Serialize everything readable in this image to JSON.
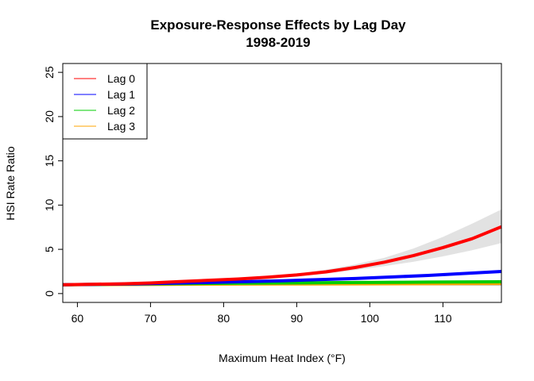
{
  "chart_data": {
    "type": "line",
    "title": "Exposure-Response Effects by Lag Day",
    "subtitle": "1998-2019",
    "xlabel": "Maximum Heat Index (°F)",
    "ylabel": "HSI Rate Ratio",
    "xlim": [
      58,
      118
    ],
    "ylim": [
      -1,
      26
    ],
    "x_ticks": [
      60,
      70,
      80,
      90,
      100,
      110
    ],
    "y_ticks": [
      0,
      5,
      10,
      15,
      20,
      25
    ],
    "legend_position": "top-left",
    "reference_line": 1,
    "series": [
      {
        "name": "Lag 0",
        "color": "#FF0000",
        "x": [
          58,
          62,
          66,
          70,
          74,
          78,
          82,
          86,
          90,
          94,
          98,
          102,
          106,
          110,
          114,
          118
        ],
        "y": [
          1.0,
          1.05,
          1.1,
          1.2,
          1.35,
          1.5,
          1.65,
          1.85,
          2.1,
          2.45,
          2.95,
          3.55,
          4.3,
          5.2,
          6.2,
          7.55
        ],
        "ci_lower": [
          1.0,
          1.04,
          1.08,
          1.17,
          1.3,
          1.44,
          1.57,
          1.75,
          1.95,
          2.25,
          2.65,
          3.1,
          3.6,
          4.2,
          4.9,
          5.7
        ],
        "ci_upper": [
          1.0,
          1.06,
          1.12,
          1.23,
          1.4,
          1.56,
          1.73,
          1.95,
          2.25,
          2.7,
          3.3,
          4.05,
          5.1,
          6.4,
          7.9,
          9.5
        ]
      },
      {
        "name": "Lag 1",
        "color": "#0000FF",
        "x": [
          58,
          68,
          78,
          88,
          98,
          108,
          118
        ],
        "y": [
          1.0,
          1.1,
          1.25,
          1.45,
          1.7,
          2.05,
          2.5
        ]
      },
      {
        "name": "Lag 2",
        "color": "#00CC00",
        "x": [
          58,
          68,
          78,
          88,
          98,
          108,
          118
        ],
        "y": [
          1.0,
          1.08,
          1.15,
          1.2,
          1.25,
          1.3,
          1.33
        ]
      },
      {
        "name": "Lag 3",
        "color": "#FFA500",
        "x": [
          58,
          68,
          78,
          88,
          98,
          108,
          118
        ],
        "y": [
          1.0,
          1.03,
          1.06,
          1.08,
          1.1,
          1.12,
          1.14
        ]
      }
    ]
  }
}
